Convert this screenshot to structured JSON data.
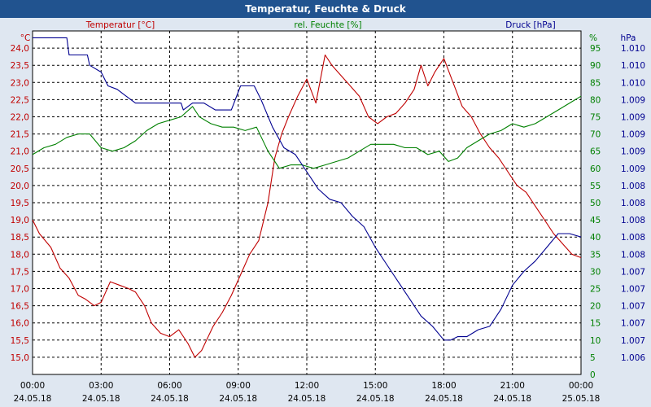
{
  "window": {
    "title": "Temperatur, Feuchte & Druck"
  },
  "colors": {
    "temperature": "#c00000",
    "humidity": "#008000",
    "pressure": "#000090",
    "plot_bg": "#ffffff",
    "frame_bg": "#dfe7f1",
    "title_bg": "#21538f"
  },
  "chart_data": {
    "type": "line",
    "title": "Temperatur, Feuchte & Druck",
    "x_axis": {
      "unit": "hours since 24.05.18 00:00",
      "range": [
        0,
        24
      ],
      "ticks": [
        {
          "pos": 0,
          "time": "00:00",
          "date": "24.05.18"
        },
        {
          "pos": 3,
          "time": "03:00",
          "date": "24.05.18"
        },
        {
          "pos": 6,
          "time": "06:00",
          "date": "24.05.18"
        },
        {
          "pos": 9,
          "time": "09:00",
          "date": "24.05.18"
        },
        {
          "pos": 12,
          "time": "12:00",
          "date": "24.05.18"
        },
        {
          "pos": 15,
          "time": "15:00",
          "date": "24.05.18"
        },
        {
          "pos": 18,
          "time": "18:00",
          "date": "24.05.18"
        },
        {
          "pos": 21,
          "time": "21:00",
          "date": "24.05.18"
        },
        {
          "pos": 24,
          "time": "00:00",
          "date": "25.05.18"
        }
      ]
    },
    "axes": {
      "temperature": {
        "label": "Temperatur [°C]",
        "unit": "°C",
        "range": [
          14.5,
          24.5
        ],
        "ticks": [
          "15,0",
          "15,5",
          "16,0",
          "16,5",
          "17,0",
          "17,5",
          "18,0",
          "18,5",
          "19,0",
          "19,5",
          "20,0",
          "20,5",
          "21,0",
          "21,5",
          "22,0",
          "22,5",
          "23,0",
          "23,5",
          "24,0"
        ]
      },
      "humidity": {
        "label": "rel. Feuchte [%]",
        "unit": "%",
        "range": [
          0,
          100
        ],
        "ticks": [
          "0",
          "5",
          "10",
          "15",
          "20",
          "25",
          "30",
          "35",
          "40",
          "45",
          "50",
          "55",
          "60",
          "65",
          "70",
          "75",
          "80",
          "85",
          "90",
          "95"
        ]
      },
      "pressure": {
        "label": "Druck [hPa]",
        "unit": "hPa",
        "range": [
          1006.0,
          1011.0
        ],
        "ticks": [
          {
            "v": 1006.25,
            "t": "1.006"
          },
          {
            "v": 1006.5,
            "t": "1.007"
          },
          {
            "v": 1006.75,
            "t": "1.007"
          },
          {
            "v": 1007.0,
            "t": "1.007"
          },
          {
            "v": 1007.25,
            "t": "1.007"
          },
          {
            "v": 1007.5,
            "t": "1.007"
          },
          {
            "v": 1007.75,
            "t": "1.008"
          },
          {
            "v": 1008.0,
            "t": "1.008"
          },
          {
            "v": 1008.25,
            "t": "1.008"
          },
          {
            "v": 1008.5,
            "t": "1.008"
          },
          {
            "v": 1008.75,
            "t": "1.008"
          },
          {
            "v": 1009.0,
            "t": "1.009"
          },
          {
            "v": 1009.25,
            "t": "1.009"
          },
          {
            "v": 1009.5,
            "t": "1.009"
          },
          {
            "v": 1009.75,
            "t": "1.009"
          },
          {
            "v": 1010.0,
            "t": "1.009"
          },
          {
            "v": 1010.25,
            "t": "1.010"
          },
          {
            "v": 1010.5,
            "t": "1.010"
          },
          {
            "v": 1010.75,
            "t": "1.010"
          }
        ]
      }
    },
    "grid": true,
    "series": [
      {
        "name": "Temperatur [°C]",
        "axis": "temperature",
        "color": "#c00000",
        "points": [
          [
            0,
            19.0
          ],
          [
            0.3,
            18.6
          ],
          [
            0.8,
            18.2
          ],
          [
            1.2,
            17.6
          ],
          [
            1.6,
            17.3
          ],
          [
            2.0,
            16.8
          ],
          [
            2.3,
            16.7
          ],
          [
            2.7,
            16.5
          ],
          [
            3.0,
            16.6
          ],
          [
            3.4,
            17.2
          ],
          [
            3.8,
            17.1
          ],
          [
            4.2,
            17.0
          ],
          [
            4.5,
            16.9
          ],
          [
            4.9,
            16.5
          ],
          [
            5.2,
            16.0
          ],
          [
            5.6,
            15.7
          ],
          [
            6.0,
            15.6
          ],
          [
            6.4,
            15.8
          ],
          [
            6.8,
            15.4
          ],
          [
            7.1,
            15.0
          ],
          [
            7.4,
            15.2
          ],
          [
            7.9,
            15.9
          ],
          [
            8.3,
            16.3
          ],
          [
            8.7,
            16.8
          ],
          [
            9.1,
            17.4
          ],
          [
            9.5,
            18.0
          ],
          [
            9.9,
            18.4
          ],
          [
            10.3,
            19.5
          ],
          [
            10.6,
            20.8
          ],
          [
            10.9,
            21.5
          ],
          [
            11.2,
            22.0
          ],
          [
            11.6,
            22.6
          ],
          [
            12.0,
            23.1
          ],
          [
            12.4,
            22.4
          ],
          [
            12.8,
            23.8
          ],
          [
            13.1,
            23.5
          ],
          [
            13.5,
            23.2
          ],
          [
            13.9,
            22.9
          ],
          [
            14.3,
            22.6
          ],
          [
            14.7,
            22.0
          ],
          [
            15.1,
            21.8
          ],
          [
            15.5,
            22.0
          ],
          [
            15.9,
            22.1
          ],
          [
            16.3,
            22.4
          ],
          [
            16.7,
            22.8
          ],
          [
            17.0,
            23.5
          ],
          [
            17.3,
            22.9
          ],
          [
            17.6,
            23.3
          ],
          [
            18.0,
            23.7
          ],
          [
            18.4,
            23.0
          ],
          [
            18.8,
            22.3
          ],
          [
            19.2,
            22.0
          ],
          [
            19.6,
            21.5
          ],
          [
            20.0,
            21.1
          ],
          [
            20.4,
            20.8
          ],
          [
            20.8,
            20.4
          ],
          [
            21.2,
            20.0
          ],
          [
            21.6,
            19.8
          ],
          [
            22.0,
            19.4
          ],
          [
            22.4,
            19.0
          ],
          [
            22.8,
            18.6
          ],
          [
            23.2,
            18.3
          ],
          [
            23.6,
            18.0
          ],
          [
            24.0,
            17.9
          ]
        ]
      },
      {
        "name": "rel. Feuchte [%]",
        "axis": "humidity",
        "color": "#008000",
        "points": [
          [
            0,
            64
          ],
          [
            0.5,
            66
          ],
          [
            1.0,
            67
          ],
          [
            1.5,
            69
          ],
          [
            2.0,
            70
          ],
          [
            2.5,
            70
          ],
          [
            3.0,
            66
          ],
          [
            3.5,
            65
          ],
          [
            4.0,
            66
          ],
          [
            4.5,
            68
          ],
          [
            5.0,
            71
          ],
          [
            5.5,
            73
          ],
          [
            6.0,
            74
          ],
          [
            6.5,
            75
          ],
          [
            7.0,
            78
          ],
          [
            7.3,
            75
          ],
          [
            7.8,
            73
          ],
          [
            8.3,
            72
          ],
          [
            8.8,
            72
          ],
          [
            9.3,
            71
          ],
          [
            9.8,
            72
          ],
          [
            10.3,
            65
          ],
          [
            10.8,
            60
          ],
          [
            11.3,
            61
          ],
          [
            11.8,
            61
          ],
          [
            12.3,
            60
          ],
          [
            12.8,
            61
          ],
          [
            13.3,
            62
          ],
          [
            13.8,
            63
          ],
          [
            14.3,
            65
          ],
          [
            14.8,
            67
          ],
          [
            15.3,
            67
          ],
          [
            15.8,
            67
          ],
          [
            16.3,
            66
          ],
          [
            16.8,
            66
          ],
          [
            17.3,
            64
          ],
          [
            17.8,
            65
          ],
          [
            18.2,
            62
          ],
          [
            18.6,
            63
          ],
          [
            19.0,
            66
          ],
          [
            19.5,
            68
          ],
          [
            20.0,
            70
          ],
          [
            20.5,
            71
          ],
          [
            21.0,
            73
          ],
          [
            21.5,
            72
          ],
          [
            22.0,
            73
          ],
          [
            22.5,
            75
          ],
          [
            23.0,
            77
          ],
          [
            23.5,
            79
          ],
          [
            24.0,
            81
          ]
        ]
      },
      {
        "name": "Druck [hPa]",
        "axis": "pressure",
        "color": "#000090",
        "points": [
          [
            0,
            1010.9
          ],
          [
            1.5,
            1010.9
          ],
          [
            1.6,
            1010.65
          ],
          [
            2.4,
            1010.65
          ],
          [
            2.5,
            1010.5
          ],
          [
            3.0,
            1010.4
          ],
          [
            3.3,
            1010.2
          ],
          [
            3.7,
            1010.15
          ],
          [
            4.1,
            1010.05
          ],
          [
            4.5,
            1009.95
          ],
          [
            5.0,
            1009.95
          ],
          [
            6.5,
            1009.95
          ],
          [
            6.6,
            1009.85
          ],
          [
            7.0,
            1009.95
          ],
          [
            7.5,
            1009.95
          ],
          [
            8.0,
            1009.85
          ],
          [
            8.7,
            1009.85
          ],
          [
            9.1,
            1010.2
          ],
          [
            9.7,
            1010.2
          ],
          [
            10.0,
            1010.0
          ],
          [
            10.5,
            1009.6
          ],
          [
            11.0,
            1009.3
          ],
          [
            11.5,
            1009.2
          ],
          [
            12.0,
            1008.95
          ],
          [
            12.5,
            1008.7
          ],
          [
            13.0,
            1008.55
          ],
          [
            13.5,
            1008.5
          ],
          [
            14.0,
            1008.3
          ],
          [
            14.5,
            1008.15
          ],
          [
            15.0,
            1007.85
          ],
          [
            15.5,
            1007.6
          ],
          [
            16.0,
            1007.35
          ],
          [
            16.5,
            1007.1
          ],
          [
            17.0,
            1006.85
          ],
          [
            17.5,
            1006.7
          ],
          [
            18.0,
            1006.5
          ],
          [
            18.3,
            1006.5
          ],
          [
            18.6,
            1006.55
          ],
          [
            19.0,
            1006.55
          ],
          [
            19.5,
            1006.65
          ],
          [
            20.0,
            1006.7
          ],
          [
            20.5,
            1006.95
          ],
          [
            21.0,
            1007.3
          ],
          [
            21.5,
            1007.5
          ],
          [
            22.0,
            1007.65
          ],
          [
            22.5,
            1007.85
          ],
          [
            23.0,
            1008.05
          ],
          [
            23.5,
            1008.05
          ],
          [
            24.0,
            1008.0
          ]
        ]
      }
    ]
  }
}
